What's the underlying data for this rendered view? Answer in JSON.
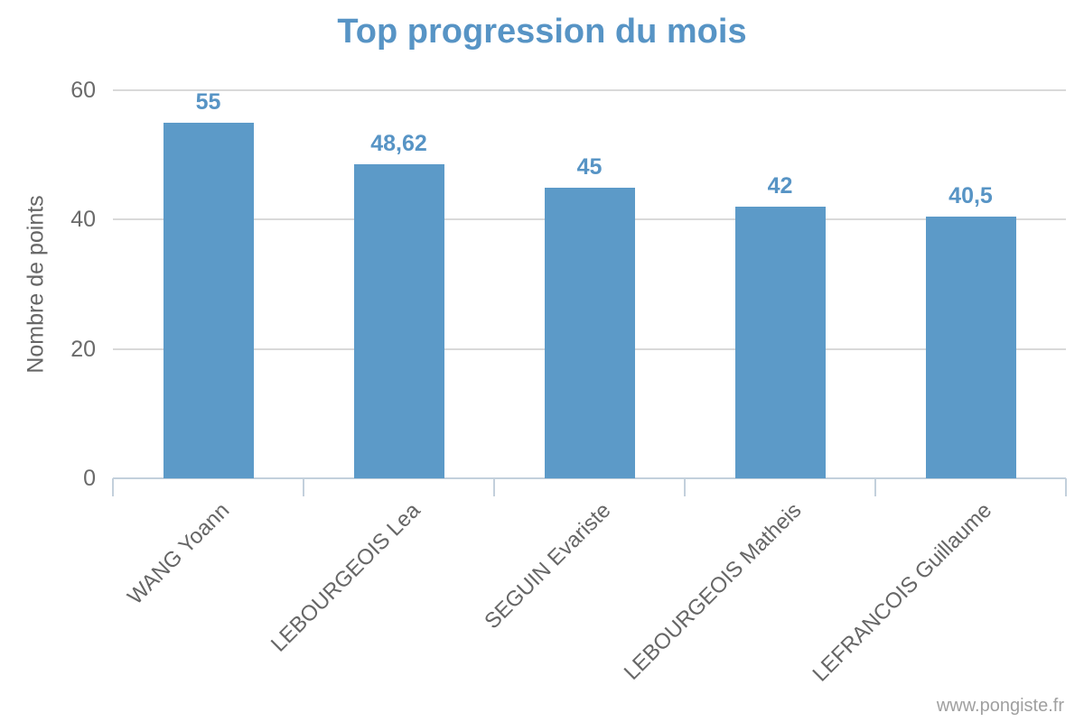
{
  "title": "Top progression du mois",
  "watermark": "www.pongiste.fr",
  "colors": {
    "bar": "#5C9AC8",
    "title": "#5794C5",
    "data_label": "#5794C5",
    "grid": "#D9D9D9",
    "axis": "#C3D0DC",
    "tick_label": "#6A6A6A",
    "axis_title": "#666666",
    "watermark": "#A0A0A0"
  },
  "chart_data": {
    "type": "bar",
    "title": "Top progression du mois",
    "categories": [
      "WANG Yoann",
      "LEBOURGEOIS Lea",
      "SEGUIN Evariste",
      "LEBOURGEOIS Matheis",
      "LEFRANCOIS Guillaume"
    ],
    "values": [
      55,
      48.62,
      45,
      42,
      40.5
    ],
    "value_labels": [
      "55",
      "48,62",
      "45",
      "42",
      "40,5"
    ],
    "xlabel": "",
    "ylabel": "Nombre de points",
    "ylim": [
      0,
      60
    ],
    "yticks": [
      0,
      20,
      40,
      60
    ],
    "grid": "horizontal-only",
    "legend": "none",
    "bar_color": "#5C9AC8",
    "data_labels_shown": true,
    "category_label_rotation": -45
  }
}
